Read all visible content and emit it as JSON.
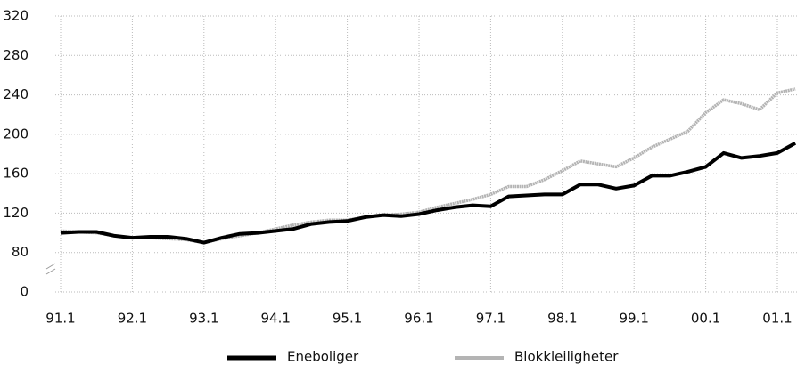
{
  "chart_data": {
    "type": "line",
    "categories": [
      "91.1",
      null,
      null,
      null,
      "92.1",
      null,
      null,
      null,
      "93.1",
      null,
      null,
      null,
      "94.1",
      null,
      null,
      null,
      "95.1",
      null,
      null,
      null,
      "96.1",
      null,
      null,
      null,
      "97.1",
      null,
      null,
      null,
      "98.1",
      null,
      null,
      null,
      "99.1",
      null,
      null,
      null,
      "00.1",
      null,
      null,
      null,
      "01.1",
      null
    ],
    "series": [
      {
        "name": "Eneboliger",
        "color": "#000000",
        "values": [
          100,
          101,
          101,
          97,
          95,
          96,
          96,
          94,
          90,
          95,
          99,
          100,
          102,
          104,
          109,
          111,
          112,
          116,
          118,
          117,
          119,
          123,
          126,
          128,
          127,
          137,
          138,
          139,
          139,
          149,
          149,
          145,
          148,
          158,
          158,
          162,
          167,
          181,
          176,
          178,
          181,
          191
        ]
      },
      {
        "name": "Blokkleiligheter",
        "color": "#b4b4b4",
        "values": [
          102,
          101,
          100,
          97,
          95,
          95,
          94,
          93,
          90,
          94,
          97,
          100,
          104,
          108,
          111,
          113,
          113,
          116,
          118,
          119,
          121,
          126,
          130,
          134,
          139,
          147,
          147,
          154,
          163,
          173,
          170,
          167,
          176,
          187,
          195,
          203,
          222,
          235,
          231,
          225,
          242,
          246
        ]
      }
    ],
    "ylim": [
      0,
      320
    ],
    "yticks": [
      0,
      80,
      120,
      160,
      200,
      240,
      280,
      320
    ],
    "y_axis_break": [
      0,
      80
    ],
    "grid": true,
    "legend": "bottom"
  }
}
